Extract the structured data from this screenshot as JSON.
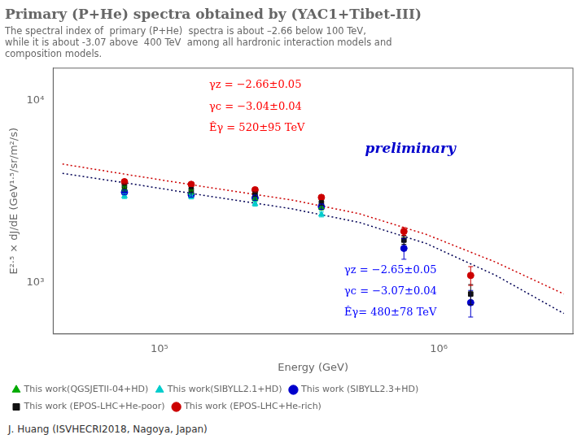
{
  "chart_data": {
    "type": "scatter",
    "title": "Primary (P+He) spectra obtained by (YAC1+Tibet-III)",
    "subtitle": [
      "The spectral index of  primary (P+He)  spectra is about –2.66 below 100 TeV,",
      "while it is about -3.07 above  400 TeV  among all hardronic interaction models and",
      "composition models."
    ],
    "x_label": "Energy (GeV)",
    "y_label": "E²·⁵ × dJ/dE (GeV¹·⁵/sr/m²/s)",
    "log": true,
    "grid": false,
    "legend": "bottom",
    "xlim": [
      41686.93834703354,
      3019951.720402016
    ],
    "ylim": [
      524.8074602497726,
      15135.61248436208
    ],
    "xticks": [
      {
        "value": 100000,
        "label": "10⁵"
      },
      {
        "value": 1000000,
        "label": "10⁶"
      }
    ],
    "yticks": [
      {
        "value": 1000,
        "label": "10³"
      },
      {
        "value": 10000,
        "label": "10⁴"
      }
    ],
    "series": [
      {
        "name": "This work(QGSJETII-04+HD)",
        "color": "#00aa00",
        "marker": "triangle",
        "x": [
          75000,
          130000,
          220000,
          380000
        ],
        "values": [
          3300,
          3150,
          2900,
          2600
        ],
        "errors": [
          100,
          90,
          85,
          80
        ]
      },
      {
        "name": "This work(SIBYLL2.1+HD)",
        "color": "#00cccc",
        "marker": "triangle",
        "x": [
          75000,
          130000,
          220000,
          380000
        ],
        "values": [
          3000,
          2980,
          2720,
          2380
        ],
        "errors": [
          90,
          85,
          80,
          75
        ]
      },
      {
        "name": "This work (SIBYLL2.3+HD)",
        "color": "#0000cc",
        "marker": "circle",
        "x": [
          75000,
          130000,
          220000,
          380000,
          750000,
          1300000
        ],
        "values": [
          3150,
          3050,
          2930,
          2620,
          1550,
          780
        ],
        "errors": [
          100,
          90,
          85,
          80,
          200,
          130
        ]
      },
      {
        "name": "This work (EPOS-LHC+He-poor)",
        "color": "#111111",
        "marker": "square",
        "x": [
          75000,
          130000,
          220000,
          380000,
          750000,
          1300000
        ],
        "values": [
          3400,
          3250,
          3080,
          2750,
          1720,
          870
        ],
        "errors": [
          100,
          90,
          85,
          80,
          90,
          110
        ]
      },
      {
        "name": "This work (EPOS-LHC+He-rich)",
        "color": "#cc0000",
        "marker": "circle",
        "x": [
          75000,
          130000,
          220000,
          380000,
          750000,
          1300000
        ],
        "values": [
          3600,
          3480,
          3250,
          2950,
          1920,
          1100
        ],
        "errors": [
          100,
          90,
          85,
          80,
          95,
          130
        ]
      },
      {
        "type": "line",
        "color": "#cc0000",
        "line_style": "dotted",
        "x": [
          45000,
          80000,
          150000,
          300000,
          520000,
          900000,
          1600000,
          2800000
        ],
        "values": [
          4500,
          3900,
          3350,
          2850,
          2400,
          1850,
          1300,
          870
        ]
      },
      {
        "type": "line",
        "color": "#000055",
        "line_style": "dotted",
        "x": [
          45000,
          80000,
          150000,
          300000,
          520000,
          900000,
          1600000,
          2800000
        ],
        "values": [
          4000,
          3500,
          3000,
          2550,
          2150,
          1650,
          1100,
          680
        ]
      }
    ],
    "annotations": [
      {
        "text": "γz = −2.66±0.05",
        "color": "red"
      },
      {
        "text": "γc = −3.04±0.04",
        "color": "red"
      },
      {
        "text": "Êγ = 520±95 TeV",
        "color": "red"
      },
      {
        "text": "preliminary",
        "color": "#0000cc"
      },
      {
        "text": "γz = −2.65±0.05",
        "color": "blue"
      },
      {
        "text": "γc = −3.07±0.04",
        "color": "blue"
      },
      {
        "text": "Êγ= 480±78 TeV",
        "color": "blue"
      }
    ],
    "footer": "J. Huang  (ISVHECRI2018,  Nagoya,  Japan)"
  }
}
